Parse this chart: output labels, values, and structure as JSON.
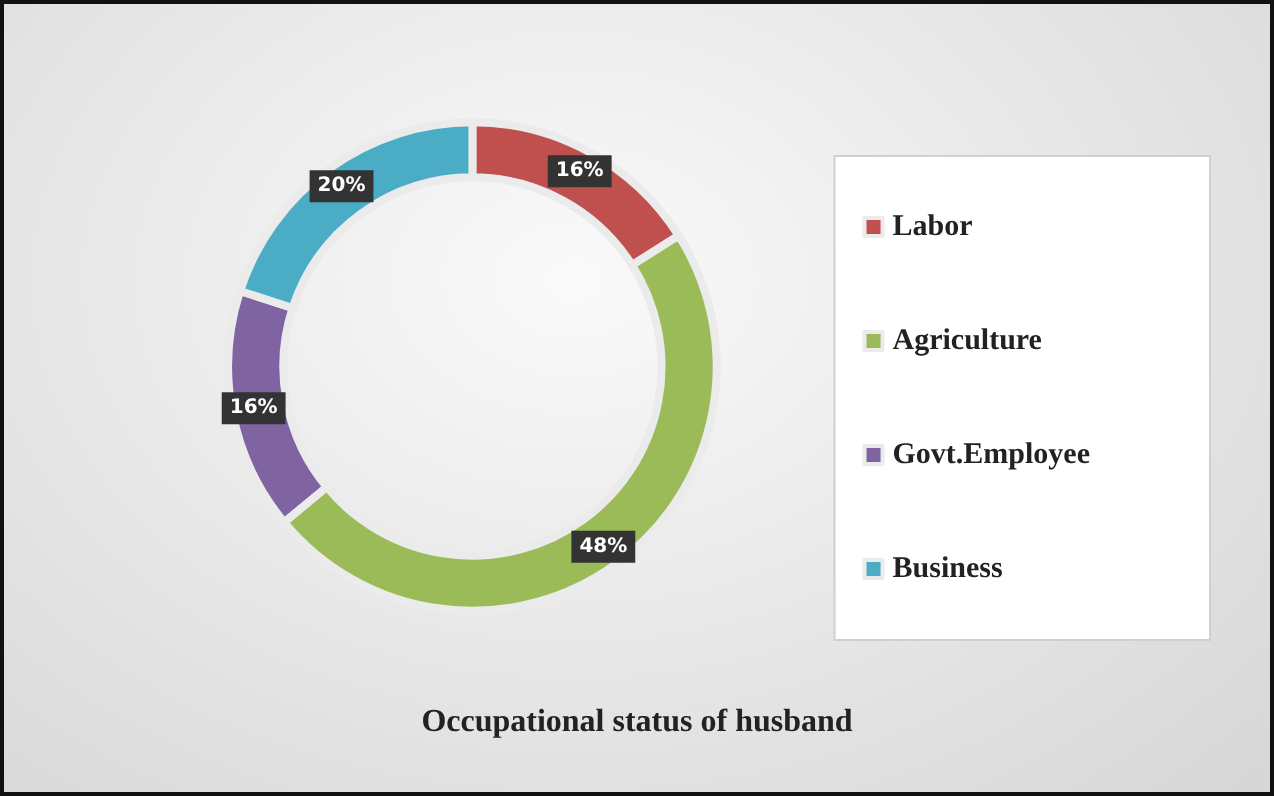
{
  "chart_data": {
    "type": "donut",
    "title": "Occupational status of husband",
    "categories": [
      "Labor",
      "Agriculture",
      "Govt.Employee",
      "Business"
    ],
    "values": [
      16,
      48,
      16,
      20
    ],
    "colors": [
      "#c0504d",
      "#9bbb59",
      "#8064a2",
      "#4bacc6"
    ],
    "value_labels": [
      "16%",
      "48%",
      "16%",
      "20%"
    ],
    "legend": "right"
  }
}
